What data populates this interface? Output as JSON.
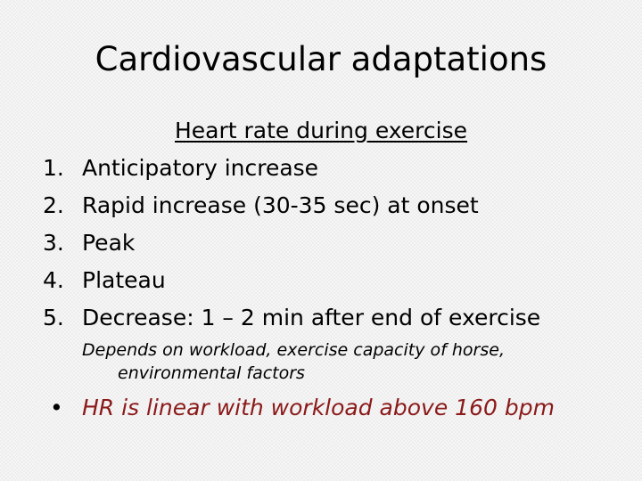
{
  "slide": {
    "title": "Cardiovascular adaptations",
    "subtitle": "Heart rate during exercise",
    "list": [
      {
        "number": "1.",
        "text": "Anticipatory increase"
      },
      {
        "number": "2.",
        "text": "Rapid increase (30-35 sec) at onset"
      },
      {
        "number": "3.",
        "text": "Peak"
      },
      {
        "number": "4.",
        "text": "Plateau"
      },
      {
        "number": "5.",
        "text": "Decrease: 1 – 2 min after end of exercise"
      }
    ],
    "note": {
      "line1": "Depends on workload, exercise capacity of horse,",
      "line2": "environmental factors"
    },
    "bullet": {
      "symbol": "•",
      "text": "HR is linear with workload above 160 bpm"
    }
  },
  "colors": {
    "background": "#f6f6f6",
    "text": "#000000",
    "accent": "#8b1a1a"
  }
}
